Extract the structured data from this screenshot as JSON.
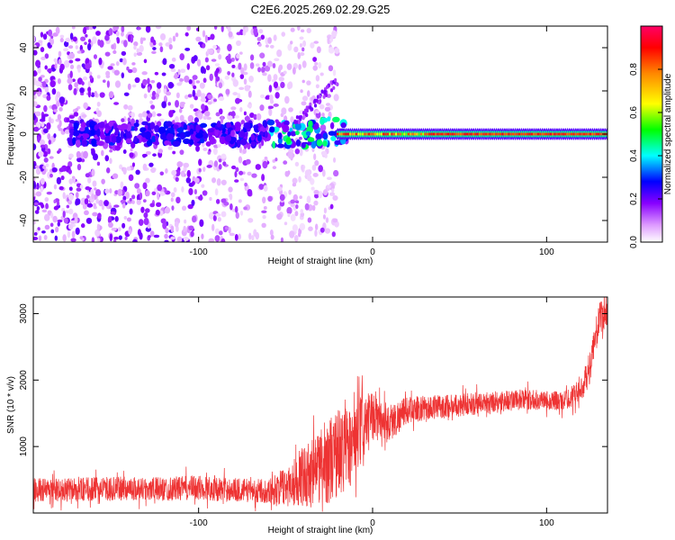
{
  "title": "C2E6.2025.269.02.29.G25",
  "chart_data": [
    {
      "type": "heatmap",
      "xlabel": "Height of straight line (km)",
      "ylabel": "Frequency (Hz)",
      "xlim": [
        -195,
        135
      ],
      "ylim": [
        -50,
        50
      ],
      "xticks": [
        -100,
        0,
        100
      ],
      "yticks": [
        -40,
        -20,
        0,
        20,
        40
      ],
      "carrier_band": {
        "from_km": -20,
        "to_km": 135,
        "frequency_hz": 0,
        "half_width_hz": 2.5
      },
      "colorbar": {
        "label": "Normalized spectral amplitude",
        "range": [
          0,
          1
        ],
        "ticks": [
          "0.0",
          "0.2",
          "0.4",
          "0.6",
          "0.8"
        ]
      }
    },
    {
      "type": "line",
      "xlabel": "Height of straight line (km)",
      "ylabel": "SNR (10 * v/v)",
      "xlim": [
        -195,
        135
      ],
      "ylim": [
        0,
        3250
      ],
      "xticks": [
        -100,
        0,
        100
      ],
      "yticks": [
        1000,
        2000,
        3000
      ],
      "series": [
        {
          "name": "SNR",
          "color": "#ee3333",
          "x": [
            -195,
            -180,
            -160,
            -140,
            -120,
            -100,
            -80,
            -60,
            -50,
            -40,
            -30,
            -20,
            -10,
            -5,
            0,
            10,
            20,
            40,
            60,
            80,
            100,
            110,
            120,
            125,
            130,
            135
          ],
          "y": [
            350,
            340,
            360,
            370,
            360,
            380,
            350,
            330,
            400,
            550,
            700,
            900,
            1050,
            1300,
            1450,
            1350,
            1550,
            1600,
            1650,
            1700,
            1700,
            1680,
            1850,
            2200,
            2900,
            3050
          ],
          "spread": [
            180,
            180,
            180,
            180,
            180,
            190,
            180,
            180,
            300,
            450,
            600,
            700,
            600,
            500,
            350,
            300,
            200,
            180,
            170,
            160,
            150,
            150,
            180,
            250,
            250,
            250
          ]
        }
      ]
    }
  ]
}
